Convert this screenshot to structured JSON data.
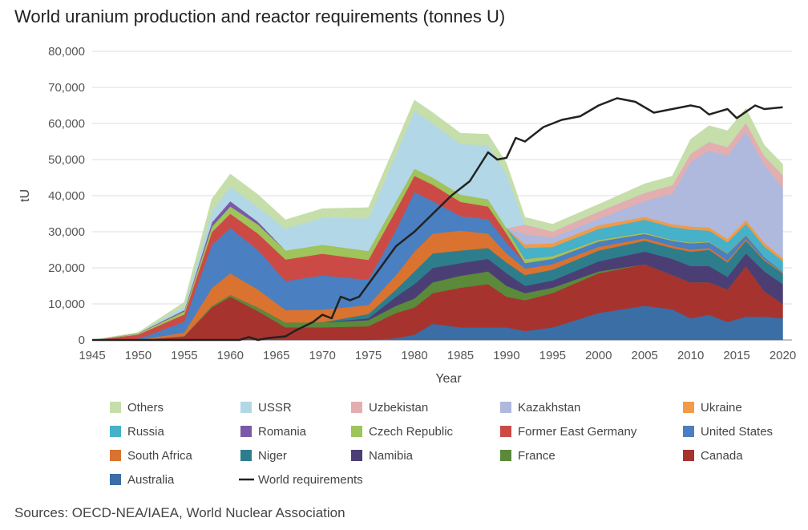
{
  "title": "World uranium production and reactor requirements (tonnes U)",
  "source": "Sources: OECD-NEA/IAEA, World Nuclear Association",
  "chart_data": {
    "type": "area",
    "stacked": true,
    "title": "World uranium production and reactor requirements (tonnes U)",
    "xlabel": "Year",
    "ylabel": "tU",
    "xlim": [
      1945,
      2021
    ],
    "ylim": [
      0,
      80000
    ],
    "x_ticks": [
      1945,
      1950,
      1955,
      1960,
      1965,
      1970,
      1975,
      1980,
      1985,
      1990,
      1995,
      2000,
      2005,
      2010,
      2015,
      2020
    ],
    "y_ticks": [
      0,
      10000,
      20000,
      30000,
      40000,
      50000,
      60000,
      70000,
      80000
    ],
    "y_tick_labels": [
      "0",
      "10,000",
      "20,000",
      "30,000",
      "40,000",
      "50,000",
      "60,000",
      "70,000",
      "80,000"
    ],
    "grid": true,
    "years": [
      1945,
      1950,
      1955,
      1958,
      1960,
      1963,
      1966,
      1970,
      1975,
      1978,
      1980,
      1982,
      1985,
      1988,
      1990,
      1992,
      1995,
      2000,
      2005,
      2008,
      2010,
      2012,
      2014,
      2016,
      2018,
      2020
    ],
    "series": [
      {
        "name": "Australia",
        "color": "#3a6ea5",
        "values": [
          0,
          0,
          0,
          0,
          0,
          0,
          0,
          0,
          0,
          500,
          1500,
          4500,
          3500,
          3500,
          3500,
          2500,
          3500,
          7500,
          9500,
          8500,
          6000,
          7000,
          5000,
          6500,
          6500,
          6000
        ]
      },
      {
        "name": "Canada",
        "color": "#a7332e",
        "values": [
          0,
          0,
          1000,
          9000,
          12000,
          8000,
          3500,
          3500,
          3800,
          7000,
          7500,
          8500,
          11000,
          12000,
          8500,
          8500,
          9500,
          11000,
          11500,
          9500,
          10000,
          9000,
          9000,
          14000,
          7000,
          4000
        ]
      },
      {
        "name": "France",
        "color": "#5a8a3a",
        "values": [
          0,
          0,
          100,
          400,
          500,
          1000,
          1300,
          1400,
          1700,
          2000,
          2500,
          3000,
          3300,
          3500,
          3000,
          2000,
          1500,
          500,
          0,
          0,
          0,
          0,
          0,
          0,
          0,
          0
        ]
      },
      {
        "name": "Namibia",
        "color": "#4b3e75",
        "values": [
          0,
          0,
          0,
          0,
          0,
          0,
          0,
          0,
          500,
          2500,
          4000,
          4000,
          3500,
          3500,
          3500,
          2000,
          2000,
          2800,
          3500,
          4500,
          4500,
          4500,
          3500,
          3500,
          5500,
          5500
        ]
      },
      {
        "name": "Niger",
        "color": "#2e7d8c",
        "values": [
          0,
          0,
          0,
          0,
          0,
          0,
          0,
          0,
          1200,
          2000,
          3500,
          4000,
          3500,
          3000,
          3000,
          3000,
          3000,
          3000,
          3000,
          3000,
          4000,
          4500,
          4000,
          3500,
          3000,
          3000
        ]
      },
      {
        "name": "South Africa",
        "color": "#d9732f",
        "values": [
          0,
          0,
          1000,
          5000,
          6000,
          5000,
          3500,
          3500,
          2500,
          4000,
          5500,
          5500,
          5500,
          4000,
          2500,
          1800,
          1500,
          1000,
          700,
          600,
          600,
          500,
          500,
          400,
          300,
          300
        ]
      },
      {
        "name": "United States",
        "color": "#4a7fc1",
        "values": [
          0,
          300,
          3000,
          12000,
          12500,
          11000,
          8000,
          9500,
          7000,
          12500,
          16500,
          9000,
          4000,
          4000,
          3000,
          1500,
          1500,
          1500,
          1200,
          1400,
          1700,
          1600,
          1900,
          1100,
          600,
          100
        ]
      },
      {
        "name": "Former East Germany",
        "color": "#cc4a46",
        "values": [
          0,
          1200,
          2000,
          3500,
          4000,
          4500,
          6000,
          6000,
          5500,
          5500,
          4500,
          4500,
          4000,
          3500,
          2500,
          0,
          0,
          0,
          0,
          0,
          0,
          0,
          0,
          0,
          0,
          0
        ]
      },
      {
        "name": "Czech Republic",
        "color": "#9ec45a",
        "values": [
          0,
          300,
          800,
          1500,
          2000,
          2500,
          2500,
          2500,
          2500,
          2500,
          2000,
          2000,
          2000,
          2000,
          1500,
          1200,
          800,
          500,
          400,
          300,
          300,
          200,
          200,
          200,
          0,
          0
        ]
      },
      {
        "name": "Romania",
        "color": "#7a5aa6",
        "values": [
          0,
          100,
          400,
          1200,
          1500,
          800,
          0,
          0,
          0,
          0,
          0,
          0,
          0,
          0,
          0,
          0,
          0,
          0,
          0,
          0,
          0,
          0,
          0,
          0,
          0,
          0
        ]
      },
      {
        "name": "Russia",
        "color": "#46b1c9",
        "values": [
          0,
          0,
          0,
          0,
          0,
          0,
          0,
          0,
          0,
          0,
          0,
          0,
          0,
          0,
          0,
          3000,
          2500,
          3000,
          3500,
          3500,
          3500,
          3000,
          3000,
          3000,
          3000,
          3000
        ]
      },
      {
        "name": "Ukraine",
        "color": "#f29a45",
        "values": [
          0,
          0,
          0,
          0,
          0,
          0,
          0,
          0,
          0,
          0,
          0,
          0,
          0,
          0,
          0,
          1000,
          1000,
          1000,
          800,
          800,
          850,
          900,
          900,
          1000,
          1000,
          800
        ]
      },
      {
        "name": "Kazakhstan",
        "color": "#aeb9dd",
        "values": [
          0,
          0,
          0,
          0,
          0,
          0,
          0,
          0,
          0,
          0,
          0,
          0,
          0,
          0,
          0,
          2800,
          1600,
          1800,
          4400,
          8500,
          17800,
          21300,
          23100,
          24600,
          21700,
          19500
        ]
      },
      {
        "name": "Uzbekistan",
        "color": "#e3aeb0",
        "values": [
          0,
          0,
          0,
          0,
          0,
          0,
          0,
          0,
          0,
          0,
          0,
          0,
          0,
          0,
          0,
          2700,
          1700,
          2000,
          2300,
          2300,
          2400,
          2400,
          2400,
          2400,
          2400,
          3500
        ]
      },
      {
        "name": "USSR",
        "color": "#b2d7e6",
        "values": [
          0,
          0,
          1000,
          3000,
          4000,
          4000,
          6000,
          7500,
          9000,
          13000,
          16000,
          15000,
          14000,
          15000,
          15000,
          0,
          0,
          0,
          0,
          0,
          0,
          0,
          0,
          0,
          0,
          0
        ]
      },
      {
        "name": "Others",
        "color": "#c6deaa",
        "values": [
          0,
          200,
          1200,
          3500,
          3500,
          3500,
          2500,
          2500,
          3000,
          3000,
          3000,
          3000,
          3000,
          3000,
          3000,
          2000,
          2000,
          2000,
          2500,
          2500,
          4000,
          4500,
          4500,
          4000,
          3000,
          3000
        ]
      }
    ],
    "line_series": {
      "name": "World requirements",
      "color": "#222222",
      "x": [
        1945,
        1959,
        1961,
        1962,
        1963,
        1964,
        1966,
        1967,
        1969,
        1970,
        1971,
        1972,
        1973,
        1974,
        1976,
        1978,
        1980,
        1982,
        1984,
        1986,
        1988,
        1989,
        1990,
        1991,
        1992,
        1994,
        1996,
        1998,
        2000,
        2002,
        2004,
        2006,
        2008,
        2010,
        2011,
        2012,
        2014,
        2015,
        2017,
        2018,
        2020
      ],
      "values": [
        0,
        0,
        0,
        800,
        0,
        500,
        1000,
        2500,
        5000,
        7000,
        6000,
        12000,
        11000,
        12000,
        19000,
        26000,
        30000,
        35000,
        40000,
        44000,
        52000,
        50000,
        50500,
        56000,
        55000,
        59000,
        61000,
        62000,
        65000,
        67000,
        66000,
        63000,
        64000,
        65000,
        64500,
        62500,
        64000,
        61500,
        65000,
        64000,
        64500
      ]
    },
    "legend": {
      "placement": "bottom",
      "entries": [
        "Others",
        "USSR",
        "Uzbekistan",
        "Kazakhstan",
        "Ukraine",
        "Russia",
        "Romania",
        "Czech Republic",
        "Former East Germany",
        "United States",
        "South Africa",
        "Niger",
        "Namibia",
        "France",
        "Canada",
        "Australia",
        "World requirements"
      ]
    }
  }
}
